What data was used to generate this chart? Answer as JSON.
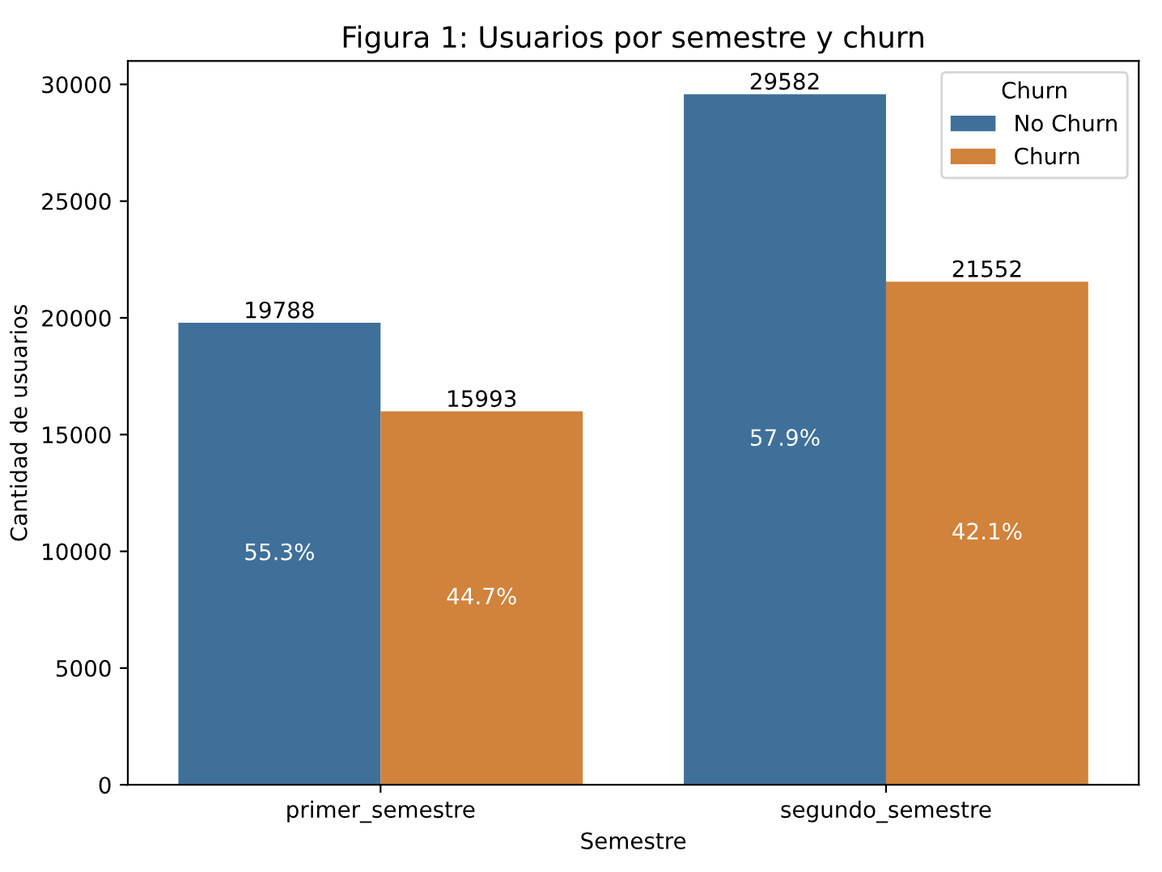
{
  "chart_data": {
    "type": "bar",
    "title": "Figura 1: Usuarios por semestre y churn",
    "xlabel": "Semestre",
    "ylabel": "Cantidad de usuarios",
    "legend_title": "Churn",
    "categories": [
      "primer_semestre",
      "segundo_semestre"
    ],
    "series": [
      {
        "name": "No Churn",
        "color": "#3f709a",
        "values": [
          19788,
          29582
        ]
      },
      {
        "name": "Churn",
        "color": "#d1823b",
        "values": [
          15993,
          21552
        ]
      }
    ],
    "ylim": [
      0,
      31000
    ],
    "yticks": [
      0,
      5000,
      10000,
      15000,
      20000,
      25000,
      30000
    ],
    "data_labels": true,
    "legend": "top right",
    "annotations": [
      "55.3%",
      "57.9%",
      "44.7%",
      "42.1%"
    ]
  }
}
